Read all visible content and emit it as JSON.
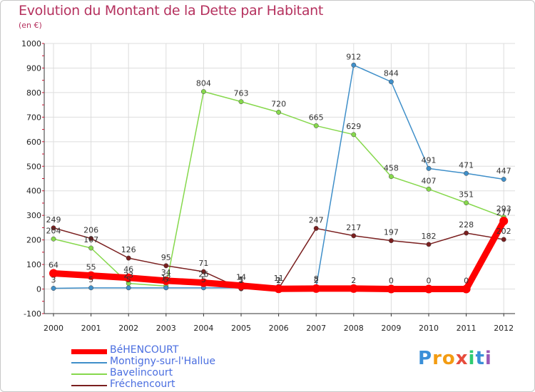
{
  "colors": {
    "title": "#b5315e",
    "legend_text": "#4a6ee0",
    "series": [
      "#ff0000",
      "#3f8fc9",
      "#86d84c",
      "#7a1f1f"
    ],
    "grid": "#dddddd",
    "axis_tick_red": "#c8102e"
  },
  "logo": {
    "letters": [
      "P",
      "r",
      "o",
      "x",
      "i",
      "t",
      "i"
    ],
    "colors": [
      "#3a8fd8",
      "#f39c12",
      "#f39c12",
      "#e74c3c",
      "#2ecc71",
      "#3a8fd8",
      "#9b59b6"
    ]
  },
  "chart_data": {
    "type": "line",
    "title": "Evolution du Montant de la Dette par Habitant",
    "subtitle": "(en €)",
    "xlabel": "",
    "ylabel": "",
    "ylim": [
      -100,
      1000
    ],
    "yticks": [
      -100,
      0,
      100,
      200,
      300,
      400,
      500,
      600,
      700,
      800,
      900,
      1000
    ],
    "grid": true,
    "legend_position": "bottom-left",
    "x": [
      "2000",
      "2001",
      "2002",
      "2003",
      "2004",
      "2005",
      "2006",
      "2007",
      "2008",
      "2009",
      "2010",
      "2011",
      "2012"
    ],
    "series": [
      {
        "name": "BéHENCOURT",
        "values": [
          64,
          55,
          46,
          34,
          26,
          14,
          1,
          2,
          2,
          0,
          0,
          0,
          277
        ],
        "labels": [
          "64",
          "55",
          "46",
          "34",
          "26",
          "14",
          "1",
          "2",
          "2",
          "0",
          "0",
          "0",
          "277"
        ]
      },
      {
        "name": "Montigny-sur-l'Hallue",
        "values": [
          3,
          5,
          5,
          5,
          5,
          5,
          11,
          8,
          912,
          844,
          491,
          471,
          447
        ],
        "labels": [
          "3",
          "5",
          "5",
          "5",
          "5",
          "5",
          "11",
          "8",
          "912",
          "844",
          "491",
          "471",
          "447"
        ]
      },
      {
        "name": "Bavelincourt",
        "values": [
          204,
          167,
          23,
          12,
          804,
          763,
          720,
          665,
          629,
          458,
          407,
          351,
          293
        ],
        "labels": [
          "204",
          "167",
          "23",
          "12",
          "804",
          "763",
          "720",
          "665",
          "629",
          "458",
          "407",
          "351",
          "293"
        ]
      },
      {
        "name": "Fréchencourt",
        "values": [
          249,
          206,
          126,
          95,
          71,
          1,
          2,
          247,
          217,
          197,
          182,
          228,
          202
        ],
        "labels": [
          "249",
          "206",
          "126",
          "95",
          "71",
          "1",
          "2",
          "247",
          "217",
          "197",
          "182",
          "228",
          "202"
        ]
      }
    ]
  }
}
